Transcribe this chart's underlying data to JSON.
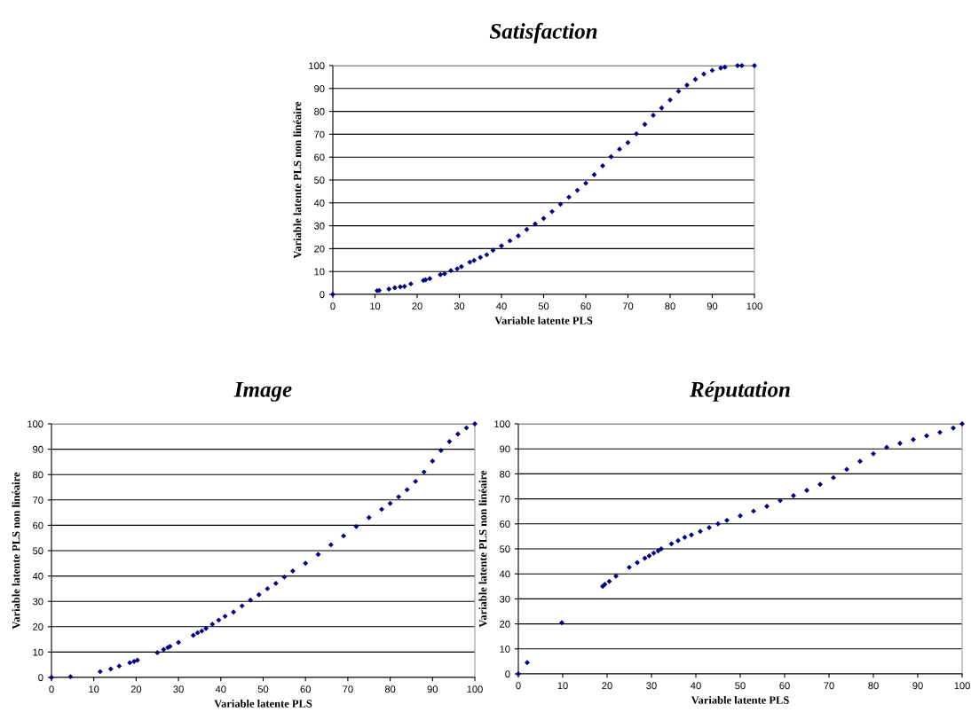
{
  "chart_data": [
    {
      "type": "scatter",
      "title": "Satisfaction",
      "xlabel": "Variable latente PLS",
      "ylabel": "Variable latente PLS non linéaire",
      "xlim": [
        0,
        100
      ],
      "ylim": [
        0,
        100
      ],
      "xticks": [
        0,
        10,
        20,
        30,
        40,
        50,
        60,
        70,
        80,
        90,
        100
      ],
      "yticks": [
        0,
        10,
        20,
        30,
        40,
        50,
        60,
        70,
        80,
        90,
        100
      ],
      "grid": "y",
      "marker": "diamond",
      "series": [
        {
          "color": "#000080",
          "x": [
            0,
            10.5,
            11,
            13.3,
            14.7,
            16,
            17,
            18.5,
            21.5,
            22,
            23,
            25.5,
            26.5,
            28,
            29.5,
            30.5,
            32.5,
            33.5,
            35,
            36.5,
            38,
            40,
            42,
            44,
            46,
            48,
            50,
            52,
            54,
            56,
            58,
            60,
            62,
            64,
            66,
            68,
            70,
            72,
            74,
            76,
            78,
            80,
            82,
            84,
            86,
            88,
            90,
            92,
            93,
            96,
            97,
            100
          ],
          "values": [
            0,
            1.6,
            1.7,
            2.3,
            2.9,
            3.3,
            3.5,
            4.6,
            6.1,
            6.4,
            6.9,
            8.6,
            9,
            10.4,
            11.2,
            12.1,
            14.1,
            14.8,
            16.2,
            17.3,
            19.3,
            21.2,
            23.4,
            25.6,
            28.4,
            30.8,
            33.2,
            36.2,
            39.4,
            42.5,
            45.5,
            48.6,
            52.3,
            56.2,
            60.2,
            63.5,
            66.4,
            70.2,
            74.3,
            78.3,
            81.5,
            85,
            88.8,
            91.5,
            94,
            96.3,
            97.9,
            98.9,
            99.3,
            100,
            100,
            100
          ]
        }
      ]
    },
    {
      "type": "scatter",
      "title": "Image",
      "xlabel": "Variable latente PLS",
      "ylabel": "Variable latente PLS non linéaire",
      "xlim": [
        0,
        100
      ],
      "ylim": [
        0,
        100
      ],
      "xticks": [
        0,
        10,
        20,
        30,
        40,
        50,
        60,
        70,
        80,
        90,
        100
      ],
      "yticks": [
        0,
        10,
        20,
        30,
        40,
        50,
        60,
        70,
        80,
        90,
        100
      ],
      "grid": "y",
      "marker": "diamond",
      "series": [
        {
          "color": "#000080",
          "x": [
            0,
            4.5,
            11.5,
            14,
            16,
            18.5,
            19.5,
            20.3,
            25,
            26.5,
            27.5,
            28,
            30,
            33.5,
            34.5,
            35.5,
            36.5,
            38,
            39.5,
            41,
            43,
            45,
            47,
            49,
            51,
            53,
            55,
            57,
            60,
            63,
            66,
            69,
            72,
            75,
            78,
            80,
            82,
            84,
            86,
            88,
            90,
            92,
            94,
            96,
            98,
            100
          ],
          "values": [
            0,
            0.3,
            2.3,
            3.3,
            4.5,
            5.8,
            6.3,
            6.8,
            9.8,
            11,
            11.8,
            12.2,
            13.8,
            16.6,
            17.6,
            18.3,
            19.3,
            21,
            22.6,
            24.1,
            25.8,
            28.2,
            30.5,
            32.6,
            35,
            37.1,
            39.6,
            42,
            45,
            48.5,
            52.3,
            55.8,
            59.5,
            63,
            66.3,
            68.6,
            71.2,
            74,
            77.3,
            81,
            85.3,
            89.5,
            93,
            96,
            98.4,
            100
          ]
        }
      ]
    },
    {
      "type": "scatter",
      "title": "Réputation",
      "xlabel": "Variable latente PLS",
      "ylabel": "Variable latente PLS non linéaire",
      "xlim": [
        0,
        100
      ],
      "ylim": [
        0,
        100
      ],
      "xticks": [
        0,
        10,
        20,
        30,
        40,
        50,
        60,
        70,
        80,
        90,
        100
      ],
      "yticks": [
        0,
        10,
        20,
        30,
        40,
        50,
        60,
        70,
        80,
        90,
        100
      ],
      "grid": "y",
      "marker": "diamond",
      "series": [
        {
          "color": "#000080",
          "x": [
            0,
            2,
            9.8,
            19,
            19.5,
            20.5,
            22,
            25,
            26.8,
            28.5,
            29.5,
            30.5,
            31.5,
            32.2,
            34.5,
            36,
            37.5,
            39,
            41,
            43,
            45,
            47,
            50,
            53,
            56,
            59,
            62,
            65,
            68,
            71,
            74,
            77,
            80,
            83,
            86,
            89,
            92,
            95,
            98,
            100
          ],
          "values": [
            0,
            4.5,
            20.5,
            35,
            35.8,
            37,
            39.1,
            42.6,
            44.5,
            46.3,
            47.2,
            48.3,
            49.2,
            50,
            52,
            53.3,
            54.6,
            55.6,
            57,
            58.5,
            60,
            61.4,
            63.2,
            65.1,
            67,
            69.3,
            71.3,
            73.4,
            75.8,
            78.5,
            81.8,
            85,
            88,
            90.6,
            92.2,
            93.7,
            95.2,
            96.6,
            98.3,
            100
          ]
        }
      ]
    }
  ]
}
